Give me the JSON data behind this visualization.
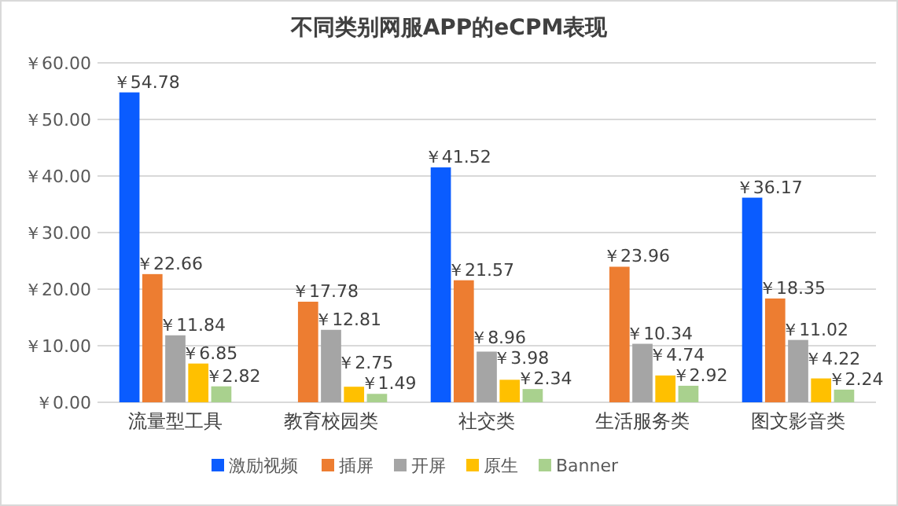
{
  "chart_data": {
    "type": "bar",
    "title": "不同类别网服APP的eCPM表现",
    "categories": [
      "流量型工具",
      "教育校园类",
      "社交类",
      "生活服务类",
      "图文影音类"
    ],
    "series": [
      {
        "name": "激励视频",
        "color": "#0a5cff",
        "values": [
          54.78,
          null,
          41.52,
          null,
          36.17
        ],
        "value_labels": [
          "￥54.78",
          null,
          "￥41.52",
          null,
          "￥36.17"
        ]
      },
      {
        "name": "插屏",
        "color": "#ed7d31",
        "values": [
          22.66,
          17.78,
          21.57,
          23.96,
          18.35
        ],
        "value_labels": [
          "￥22.66",
          "￥17.78",
          "￥21.57",
          "￥23.96",
          "￥18.35"
        ]
      },
      {
        "name": "开屏",
        "color": "#a5a5a5",
        "values": [
          11.84,
          12.81,
          8.96,
          10.34,
          11.02
        ],
        "value_labels": [
          "￥11.84",
          "￥12.81",
          "￥8.96",
          "￥10.34",
          "￥11.02"
        ]
      },
      {
        "name": "原生",
        "color": "#ffc000",
        "values": [
          6.85,
          2.75,
          3.98,
          4.74,
          4.22
        ],
        "value_labels": [
          "￥6.85",
          "￥2.75",
          "￥3.98",
          "￥4.74",
          "￥4.22"
        ]
      },
      {
        "name": "Banner",
        "color": "#a9d18e",
        "values": [
          2.82,
          1.49,
          2.34,
          2.92,
          2.24
        ],
        "value_labels": [
          "￥2.82",
          "￥1.49",
          "￥2.34",
          "￥2.92",
          "￥2.24"
        ]
      }
    ],
    "ylim": [
      0,
      60
    ],
    "yticks": [
      {
        "value": 0,
        "label": "￥0.00"
      },
      {
        "value": 10,
        "label": "￥10.00"
      },
      {
        "value": 20,
        "label": "￥20.00"
      },
      {
        "value": 30,
        "label": "￥30.00"
      },
      {
        "value": 40,
        "label": "￥40.00"
      },
      {
        "value": 50,
        "label": "￥50.00"
      },
      {
        "value": 60,
        "label": "￥60.00"
      }
    ],
    "grid": "y",
    "legend": "bottom"
  }
}
